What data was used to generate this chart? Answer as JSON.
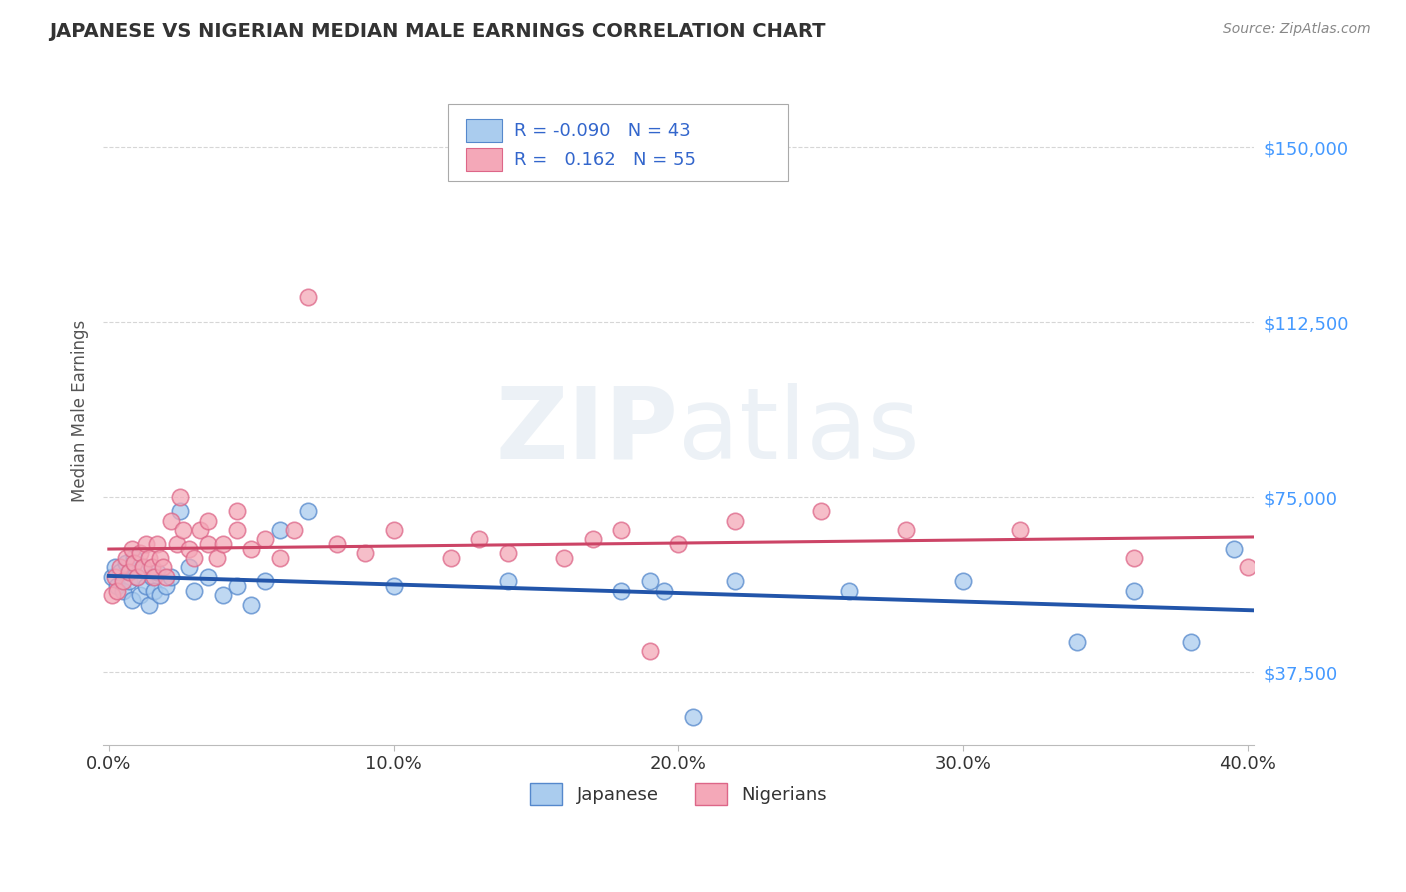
{
  "title": "JAPANESE VS NIGERIAN MEDIAN MALE EARNINGS CORRELATION CHART",
  "source": "Source: ZipAtlas.com",
  "ylabel": "Median Male Earnings",
  "watermark_zip": "ZIP",
  "watermark_atlas": "atlas",
  "xlim": [
    -0.002,
    0.402
  ],
  "ylim": [
    22000,
    165000
  ],
  "yticks": [
    37500,
    75000,
    112500,
    150000
  ],
  "ytick_labels": [
    "$37,500",
    "$75,000",
    "$112,500",
    "$150,000"
  ],
  "xticks": [
    0.0,
    0.1,
    0.2,
    0.3,
    0.4
  ],
  "xtick_labels": [
    "0.0%",
    "10.0%",
    "20.0%",
    "30.0%",
    "40.0%"
  ],
  "japanese_R": -0.09,
  "japanese_N": 43,
  "nigerian_R": 0.162,
  "nigerian_N": 55,
  "japanese_color": "#aaccee",
  "nigerian_color": "#f4a8b8",
  "japanese_edge_color": "#5588cc",
  "nigerian_edge_color": "#dd6688",
  "japanese_line_color": "#2255aa",
  "nigerian_line_color": "#cc4466",
  "grid_color": "#cccccc",
  "title_color": "#333333",
  "axis_label_color": "#555555",
  "ytick_color": "#4499ff",
  "xtick_color": "#333333",
  "background_color": "#ffffff",
  "legend_R_color": "#3366cc",
  "legend_text_color": "#333333",
  "source_color": "#888888",
  "japanese_x": [
    0.001,
    0.002,
    0.003,
    0.004,
    0.005,
    0.006,
    0.007,
    0.008,
    0.009,
    0.01,
    0.011,
    0.012,
    0.013,
    0.014,
    0.015,
    0.016,
    0.017,
    0.018,
    0.02,
    0.022,
    0.025,
    0.028,
    0.03,
    0.035,
    0.04,
    0.045,
    0.05,
    0.055,
    0.06,
    0.07,
    0.1,
    0.14,
    0.18,
    0.22,
    0.26,
    0.3,
    0.34,
    0.36,
    0.38,
    0.395,
    0.19,
    0.195,
    0.205
  ],
  "japanese_y": [
    58000,
    60000,
    56000,
    59000,
    55000,
    61000,
    57000,
    53000,
    62000,
    58000,
    54000,
    60000,
    56000,
    52000,
    58000,
    55000,
    59000,
    54000,
    56000,
    58000,
    72000,
    60000,
    55000,
    58000,
    54000,
    56000,
    52000,
    57000,
    68000,
    72000,
    56000,
    57000,
    55000,
    57000,
    55000,
    57000,
    44000,
    55000,
    44000,
    64000,
    57000,
    55000,
    28000
  ],
  "nigerian_x": [
    0.001,
    0.002,
    0.003,
    0.004,
    0.005,
    0.006,
    0.007,
    0.008,
    0.009,
    0.01,
    0.011,
    0.012,
    0.013,
    0.014,
    0.015,
    0.016,
    0.017,
    0.018,
    0.019,
    0.02,
    0.022,
    0.024,
    0.026,
    0.028,
    0.03,
    0.032,
    0.035,
    0.038,
    0.04,
    0.045,
    0.05,
    0.055,
    0.06,
    0.065,
    0.07,
    0.08,
    0.09,
    0.1,
    0.12,
    0.14,
    0.16,
    0.18,
    0.2,
    0.22,
    0.25,
    0.28,
    0.32,
    0.36,
    0.4,
    0.025,
    0.035,
    0.045,
    0.13,
    0.17,
    0.19
  ],
  "nigerian_y": [
    54000,
    58000,
    55000,
    60000,
    57000,
    62000,
    59000,
    64000,
    61000,
    58000,
    63000,
    60000,
    65000,
    62000,
    60000,
    58000,
    65000,
    62000,
    60000,
    58000,
    70000,
    65000,
    68000,
    64000,
    62000,
    68000,
    65000,
    62000,
    65000,
    68000,
    64000,
    66000,
    62000,
    68000,
    118000,
    65000,
    63000,
    68000,
    62000,
    63000,
    62000,
    68000,
    65000,
    70000,
    72000,
    68000,
    68000,
    62000,
    60000,
    75000,
    70000,
    72000,
    66000,
    66000,
    42000
  ]
}
